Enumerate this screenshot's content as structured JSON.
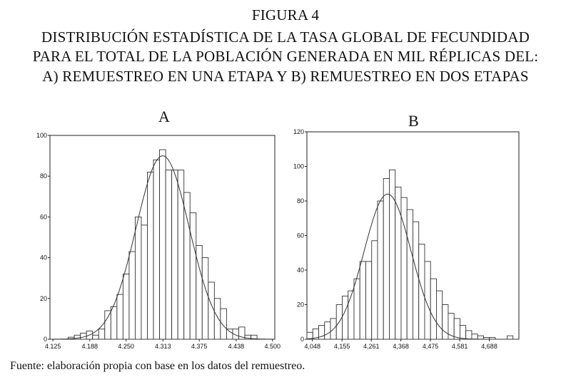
{
  "title_lines": [
    "FIGURA 4",
    "DISTRIBUCIÓN ESTADÍSTICA DE LA TASA GLOBAL DE FECUNDIDAD",
    "PARA EL  TOTAL DE LA POBLACIÓN GENERADA EN MIL RÉPLICAS DEL:",
    "A) REMUESTREO EN UNA ETAPA Y B) REMUESTREO EN DOS ETAPAS"
  ],
  "source_note": "Fuente: elaboración propia con base en los datos del remuestreo.",
  "chart_data": [
    {
      "type": "bar",
      "subtype": "histogram-with-normal-curve",
      "title": "A",
      "xlabel": "",
      "ylabel": "",
      "x_ticks": [
        4.125,
        4.188,
        4.25,
        4.313,
        4.375,
        4.438,
        4.5
      ],
      "x_tick_labels": [
        "4.125",
        "4.188",
        "4.250",
        "4.313",
        "4.375",
        "4.438",
        "4.500"
      ],
      "y_ticks": [
        0,
        20,
        40,
        60,
        80,
        100
      ],
      "xlim": [
        4.12,
        4.504
      ],
      "ylim": [
        0,
        100
      ],
      "bin_width": 0.0104,
      "bin_starts": [
        4.12,
        4.1304,
        4.1408,
        4.1512,
        4.1616,
        4.172,
        4.1824,
        4.1928,
        4.2032,
        4.2136,
        4.224,
        4.2344,
        4.2448,
        4.2552,
        4.2656,
        4.276,
        4.2864,
        4.2968,
        4.3072,
        4.3176,
        4.328,
        4.3384,
        4.3488,
        4.3592,
        4.3696,
        4.38,
        4.3904,
        4.4008,
        4.4112,
        4.4216,
        4.432,
        4.4424,
        4.4528,
        4.4632,
        4.4736,
        4.484,
        4.4944
      ],
      "counts": [
        0,
        0,
        0,
        1,
        2,
        3,
        4,
        2,
        5,
        14,
        16,
        22,
        32,
        43,
        60,
        56,
        82,
        88,
        93,
        83,
        83,
        83,
        72,
        62,
        46,
        40,
        28,
        20,
        15,
        5,
        5,
        6,
        2,
        2,
        0,
        0,
        0
      ],
      "curve": {
        "mean": 4.3125,
        "sd": 0.0455,
        "peak": 90
      },
      "colors": {
        "bars": "#ffffff",
        "edges": "#333333",
        "curve": "#333333"
      }
    },
    {
      "type": "bar",
      "subtype": "histogram-with-normal-curve",
      "title": "B",
      "xlabel": "",
      "ylabel": "",
      "x_ticks": [
        4.048,
        4.155,
        4.261,
        4.368,
        4.475,
        4.581,
        4.688
      ],
      "x_tick_labels": [
        "4,048",
        "4,155",
        "4,261",
        "4,368",
        "4,475",
        "4,581",
        "4,688"
      ],
      "y_ticks": [
        0,
        20,
        40,
        60,
        80,
        100,
        120
      ],
      "xlim": [
        4.028,
        4.795
      ],
      "ylim": [
        0,
        120
      ],
      "bin_width": 0.0213,
      "bin_starts": [
        4.028,
        4.0493,
        4.0706,
        4.0919,
        4.1132,
        4.1345,
        4.1558,
        4.1771,
        4.1984,
        4.2197,
        4.241,
        4.2623,
        4.2836,
        4.3049,
        4.3262,
        4.3475,
        4.3688,
        4.3901,
        4.4114,
        4.4327,
        4.454,
        4.4753,
        4.4966,
        4.5179,
        4.5392,
        4.5605,
        4.5818,
        4.6031,
        4.6244,
        4.6457,
        4.667,
        4.6883,
        4.7096,
        4.7309,
        4.7522
      ],
      "counts": [
        4,
        6,
        8,
        10,
        12,
        20,
        25,
        28,
        35,
        45,
        45,
        57,
        80,
        93,
        98,
        88,
        82,
        75,
        68,
        55,
        45,
        35,
        28,
        20,
        15,
        12,
        8,
        5,
        3,
        2,
        1,
        1,
        0,
        0,
        2
      ],
      "curve": {
        "mean": 4.32,
        "sd": 0.085,
        "peak": 84
      },
      "colors": {
        "bars": "#ffffff",
        "edges": "#333333",
        "curve": "#333333"
      }
    }
  ]
}
